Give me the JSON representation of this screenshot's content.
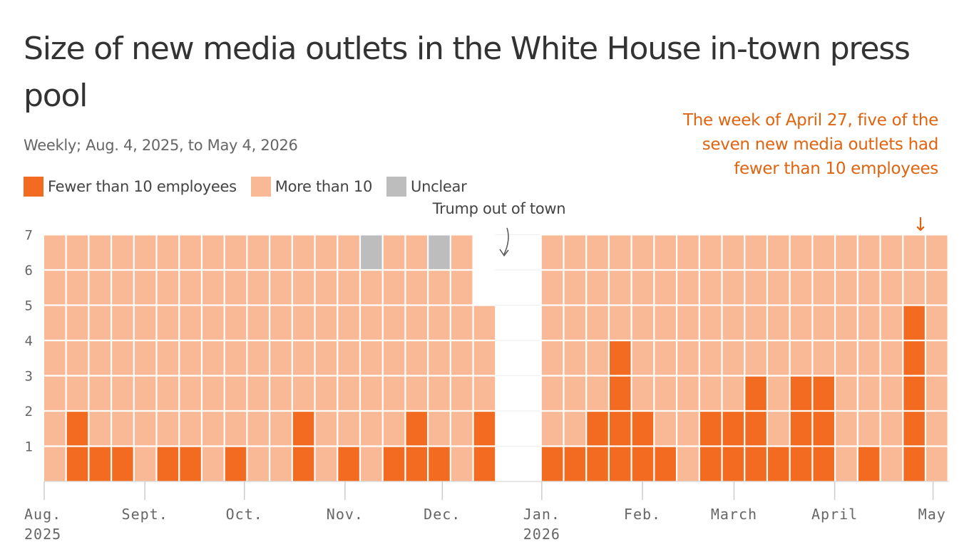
{
  "header": {
    "title": "Size of new media outlets in the White House in-town press pool",
    "subtitle": "Weekly; Aug. 4, 2025, to May 4, 2026"
  },
  "legend": [
    {
      "label": "Fewer than 10 employees",
      "color": "#F26B21"
    },
    {
      "label": "More than 10",
      "color": "#F9B896"
    },
    {
      "label": "Unclear",
      "color": "#BDBDBD"
    }
  ],
  "annotations": {
    "gap": "Trump out of town",
    "callout": "The week of April 27, five of the seven new media outlets had fewer than 10 employees",
    "callout_arrow": "↓"
  },
  "chart_data": {
    "type": "bar",
    "stacked": true,
    "x": [
      "2025-08-04",
      "2025-08-11",
      "2025-08-18",
      "2025-08-25",
      "2025-09-01",
      "2025-09-08",
      "2025-09-15",
      "2025-09-22",
      "2025-09-29",
      "2025-10-06",
      "2025-10-13",
      "2025-10-20",
      "2025-10-27",
      "2025-11-03",
      "2025-11-10",
      "2025-11-17",
      "2025-11-24",
      "2025-12-01",
      "2025-12-08",
      "2025-12-15",
      "2025-12-22",
      "2025-12-29",
      "2026-01-05",
      "2026-01-12",
      "2026-01-19",
      "2026-01-26",
      "2026-02-02",
      "2026-02-09",
      "2026-02-16",
      "2026-02-23",
      "2026-03-02",
      "2026-03-09",
      "2026-03-16",
      "2026-03-23",
      "2026-03-30",
      "2026-04-06",
      "2026-04-13",
      "2026-04-20",
      "2026-04-27",
      "2026-05-04"
    ],
    "series": [
      {
        "name": "Fewer than 10 employees",
        "color": "#F26B21",
        "values": [
          0,
          2,
          1,
          1,
          0,
          1,
          1,
          0,
          1,
          0,
          0,
          2,
          0,
          1,
          0,
          1,
          2,
          1,
          0,
          2,
          null,
          null,
          1,
          1,
          2,
          4,
          2,
          1,
          0,
          2,
          2,
          3,
          1,
          3,
          3,
          0,
          1,
          0,
          5,
          0
        ]
      },
      {
        "name": "More than 10",
        "color": "#F9B896",
        "values": [
          7,
          5,
          6,
          6,
          7,
          6,
          6,
          7,
          6,
          7,
          7,
          5,
          7,
          6,
          6,
          6,
          5,
          5,
          7,
          3,
          null,
          null,
          6,
          6,
          5,
          3,
          5,
          6,
          7,
          5,
          5,
          4,
          6,
          4,
          4,
          7,
          6,
          7,
          2,
          7
        ]
      },
      {
        "name": "Unclear",
        "color": "#BDBDBD",
        "values": [
          0,
          0,
          0,
          0,
          0,
          0,
          0,
          0,
          0,
          0,
          0,
          0,
          0,
          0,
          1,
          0,
          0,
          1,
          0,
          0,
          null,
          null,
          0,
          0,
          0,
          0,
          0,
          0,
          0,
          0,
          0,
          0,
          0,
          0,
          0,
          0,
          0,
          0,
          0,
          0
        ]
      }
    ],
    "ylim": [
      0,
      7
    ],
    "yticks": [
      "1",
      "2",
      "3",
      "4",
      "5",
      "6",
      "7"
    ],
    "xticks": [
      {
        "week": 0,
        "label": "Aug.",
        "sub": "2025"
      },
      {
        "week": 4.45,
        "label": "Sept.",
        "sub": ""
      },
      {
        "week": 8.85,
        "label": "Oct.",
        "sub": ""
      },
      {
        "week": 13.3,
        "label": "Nov.",
        "sub": ""
      },
      {
        "week": 17.6,
        "label": "Dec.",
        "sub": ""
      },
      {
        "week": 22,
        "label": "Jan.",
        "sub": "2026"
      },
      {
        "week": 26.45,
        "label": "Feb.",
        "sub": ""
      },
      {
        "week": 30.5,
        "label": "March",
        "sub": ""
      },
      {
        "week": 34.95,
        "label": "April",
        "sub": ""
      },
      {
        "week": 39.3,
        "label": "May",
        "sub": ""
      }
    ],
    "grid": true
  }
}
